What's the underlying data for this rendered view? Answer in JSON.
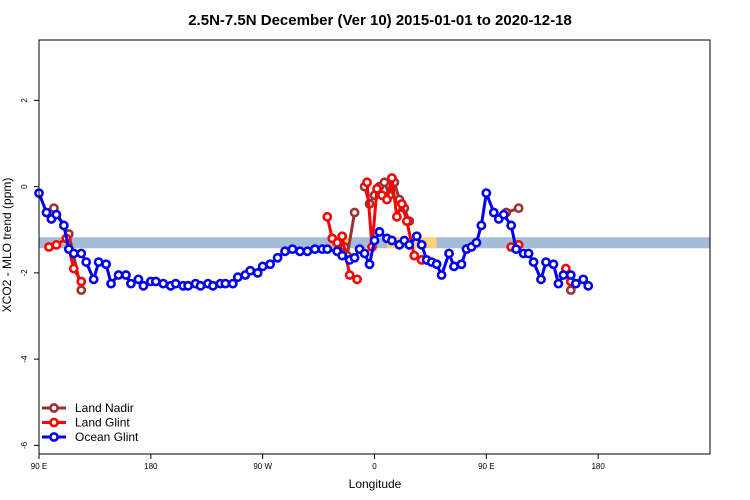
{
  "chart_data": {
    "type": "line",
    "title": "2.5N-7.5N December (Ver 10)   2015-01-01 to 2020-12-18",
    "xlabel": "Longitude",
    "ylabel": "XCO2 - MLO trend (ppm)",
    "xlim": [
      -90,
      180
    ],
    "ylim": [
      -6.2,
      3.4
    ],
    "x_ticks": [
      {
        "value": -90,
        "label": "90 E"
      },
      {
        "value": -45,
        "label": "180"
      },
      {
        "value": 0,
        "label": "90 W"
      },
      {
        "value": 45,
        "label": "0"
      },
      {
        "value": 90,
        "label": "90 E"
      },
      {
        "value": 135,
        "label": "180"
      }
    ],
    "y_ticks": [
      {
        "value": 2,
        "label": "2"
      },
      {
        "value": 0,
        "label": "0"
      },
      {
        "value": -2,
        "label": "-2"
      },
      {
        "value": -4,
        "label": "-4"
      },
      {
        "value": -6,
        "label": "-6"
      }
    ],
    "reference_band": {
      "y": -1.3,
      "segments": [
        {
          "x": [
            -90,
            30
          ],
          "color": "#a5bcd9"
        },
        {
          "x": [
            30,
            35
          ],
          "color": "#f8d27a"
        },
        {
          "x": [
            35,
            50
          ],
          "color": "#a5bcd9"
        },
        {
          "x": [
            50,
            70
          ],
          "color": "#f8d27a"
        },
        {
          "x": [
            70,
            180
          ],
          "color": "#a5bcd9"
        }
      ]
    },
    "legend_position": "bottom-left",
    "series": [
      {
        "name": "Land Nadir",
        "color": "#993333",
        "segments": [
          [
            [
              -84,
              -0.5
            ],
            [
              -78,
              -1.1
            ],
            [
              -73,
              -2.4
            ]
          ],
          [
            [
              31,
              -1.3
            ],
            [
              33,
              -1.4
            ],
            [
              34,
              -1.6
            ],
            [
              37,
              -0.6
            ]
          ],
          [
            [
              41,
              0
            ],
            [
              43,
              -0.4
            ],
            [
              45,
              -0.2
            ],
            [
              47,
              0
            ],
            [
              49,
              0.1
            ],
            [
              51,
              -0.2
            ],
            [
              53,
              0.1
            ],
            [
              55,
              -0.3
            ],
            [
              57,
              -0.5
            ],
            [
              59,
              -0.8
            ]
          ],
          [
            [
              98,
              -0.6
            ],
            [
              103,
              -0.5
            ]
          ],
          [
            [
              124,
              -2.4
            ]
          ]
        ]
      },
      {
        "name": "Land Glint",
        "color": "#ff0000",
        "segments": [
          [
            [
              -86,
              -1.4
            ],
            [
              -83,
              -1.35
            ],
            [
              -79,
              -1.2
            ],
            [
              -76,
              -1.9
            ],
            [
              -73,
              -2.2
            ]
          ],
          [
            [
              26,
              -0.7
            ],
            [
              28,
              -1.2
            ],
            [
              30,
              -1.3
            ],
            [
              32,
              -1.15
            ],
            [
              35,
              -2.05
            ],
            [
              38,
              -2.15
            ]
          ],
          [
            [
              42,
              0.1
            ],
            [
              44,
              -1.4
            ],
            [
              46,
              -0.05
            ],
            [
              48,
              -0.2
            ],
            [
              50,
              -0.3
            ],
            [
              52,
              0.2
            ],
            [
              54,
              -0.7
            ],
            [
              56,
              -0.4
            ],
            [
              58,
              -0.8
            ],
            [
              61,
              -1.6
            ],
            [
              64,
              -1.7
            ]
          ],
          [
            [
              100,
              -1.4
            ],
            [
              103,
              -1.35
            ]
          ],
          [
            [
              122,
              -1.9
            ],
            [
              124,
              -2.2
            ]
          ]
        ]
      },
      {
        "name": "Ocean Glint",
        "color": "#0000ee",
        "segments": [
          [
            [
              -90,
              -0.15
            ],
            [
              -87,
              -0.6
            ],
            [
              -85,
              -0.75
            ],
            [
              -83,
              -0.65
            ],
            [
              -80,
              -0.9
            ],
            [
              -78,
              -1.45
            ],
            [
              -76,
              -1.55
            ],
            [
              -73,
              -1.55
            ],
            [
              -71,
              -1.75
            ],
            [
              -68,
              -2.15
            ],
            [
              -66,
              -1.75
            ],
            [
              -63,
              -1.8
            ],
            [
              -61,
              -2.25
            ],
            [
              -58,
              -2.05
            ],
            [
              -55,
              -2.05
            ],
            [
              -53,
              -2.25
            ],
            [
              -50,
              -2.15
            ],
            [
              -48,
              -2.3
            ],
            [
              -45,
              -2.2
            ],
            [
              -43,
              -2.2
            ],
            [
              -40,
              -2.25
            ],
            [
              -37,
              -2.3
            ],
            [
              -35,
              -2.25
            ],
            [
              -32,
              -2.3
            ],
            [
              -30,
              -2.3
            ],
            [
              -27,
              -2.25
            ],
            [
              -25,
              -2.3
            ],
            [
              -22,
              -2.25
            ],
            [
              -20,
              -2.3
            ],
            [
              -17,
              -2.25
            ],
            [
              -15,
              -2.25
            ],
            [
              -12,
              -2.25
            ],
            [
              -10,
              -2.1
            ],
            [
              -7,
              -2.05
            ],
            [
              -5,
              -1.95
            ],
            [
              -2,
              -2.0
            ],
            [
              0,
              -1.85
            ],
            [
              3,
              -1.8
            ],
            [
              6,
              -1.65
            ],
            [
              9,
              -1.5
            ],
            [
              12,
              -1.45
            ],
            [
              15,
              -1.5
            ],
            [
              18,
              -1.5
            ],
            [
              21,
              -1.45
            ],
            [
              24,
              -1.45
            ],
            [
              26,
              -1.45
            ],
            [
              30,
              -1.5
            ],
            [
              32,
              -1.6
            ],
            [
              35,
              -1.7
            ],
            [
              37,
              -1.65
            ],
            [
              39,
              -1.45
            ],
            [
              41,
              -1.55
            ],
            [
              43,
              -1.8
            ],
            [
              45,
              -1.25
            ],
            [
              47,
              -1.05
            ],
            [
              50,
              -1.2
            ],
            [
              52,
              -1.25
            ],
            [
              55,
              -1.35
            ],
            [
              57,
              -1.25
            ],
            [
              59,
              -1.35
            ],
            [
              62,
              -1.15
            ],
            [
              64,
              -1.35
            ],
            [
              66,
              -1.7
            ],
            [
              68,
              -1.75
            ],
            [
              70,
              -1.8
            ],
            [
              72,
              -2.05
            ],
            [
              75,
              -1.55
            ],
            [
              77,
              -1.85
            ],
            [
              80,
              -1.8
            ],
            [
              82,
              -1.45
            ],
            [
              84,
              -1.4
            ],
            [
              86,
              -1.3
            ],
            [
              88,
              -0.9
            ],
            [
              90,
              -0.15
            ],
            [
              93,
              -0.6
            ],
            [
              95,
              -0.75
            ],
            [
              97,
              -0.65
            ],
            [
              100,
              -0.9
            ],
            [
              102,
              -1.45
            ],
            [
              105,
              -1.55
            ],
            [
              107,
              -1.55
            ],
            [
              109,
              -1.75
            ],
            [
              112,
              -2.15
            ],
            [
              114,
              -1.75
            ],
            [
              117,
              -1.8
            ],
            [
              119,
              -2.25
            ],
            [
              121,
              -2.05
            ],
            [
              124,
              -2.05
            ],
            [
              126,
              -2.25
            ],
            [
              129,
              -2.15
            ],
            [
              131,
              -2.3
            ]
          ]
        ]
      }
    ]
  }
}
